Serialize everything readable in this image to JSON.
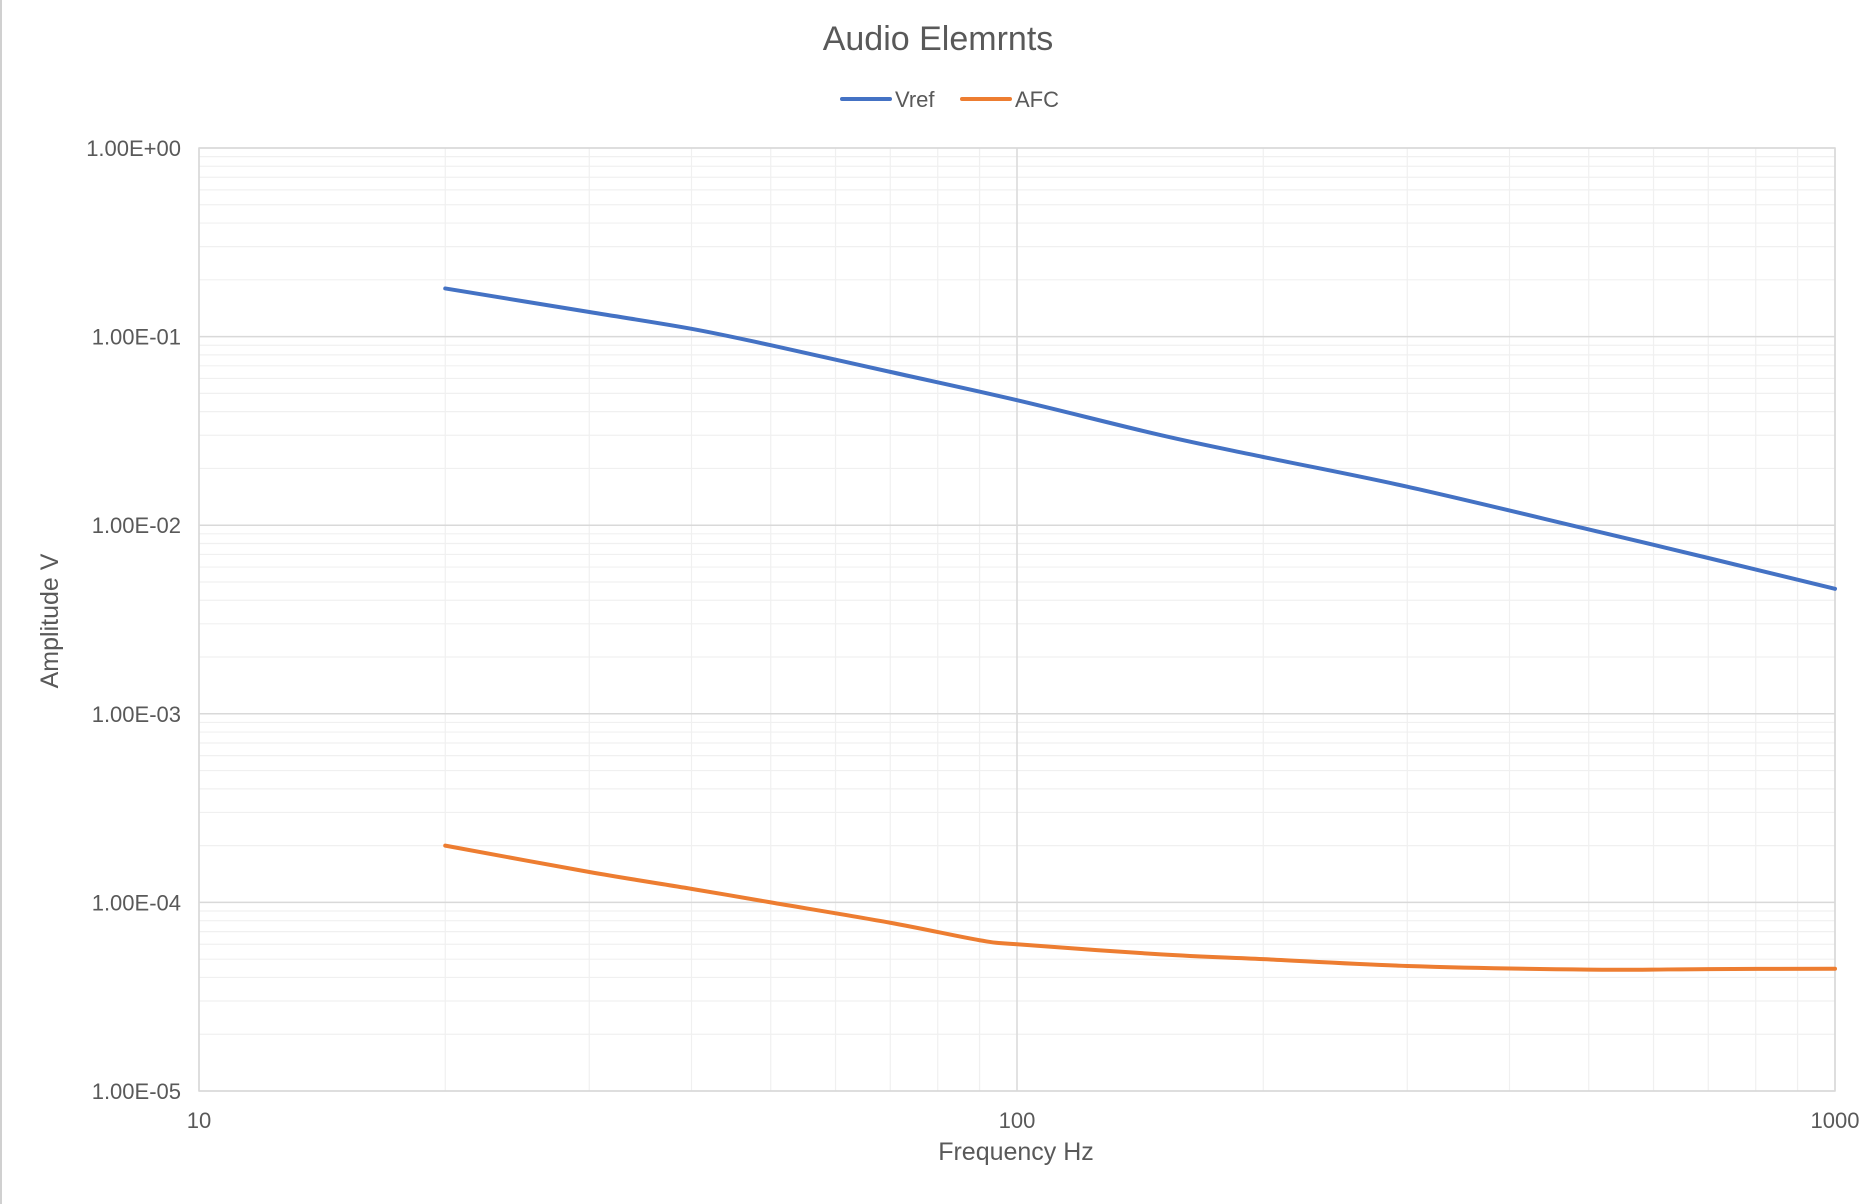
{
  "chart_data": {
    "type": "line",
    "title": "Audio Elemrnts",
    "xlabel": "Frequency Hz",
    "ylabel": "Amplitude V",
    "x_scale": "log",
    "y_scale": "log",
    "xlim": [
      10,
      1000
    ],
    "ylim": [
      1e-05,
      1
    ],
    "x_ticks": [
      {
        "value": 10,
        "label": "10"
      },
      {
        "value": 100,
        "label": "100"
      },
      {
        "value": 1000,
        "label": "1000"
      }
    ],
    "y_ticks": [
      {
        "value": 1,
        "label": "1.00E+00"
      },
      {
        "value": 0.1,
        "label": "1.00E-01"
      },
      {
        "value": 0.01,
        "label": "1.00E-02"
      },
      {
        "value": 0.001,
        "label": "1.00E-03"
      },
      {
        "value": 0.0001,
        "label": "1.00E-04"
      },
      {
        "value": 1e-05,
        "label": "1.00E-05"
      }
    ],
    "grid": true,
    "legend": "top-center",
    "series": [
      {
        "name": "Vref",
        "color": "#4472c4",
        "x": [
          20,
          30,
          40,
          50,
          70,
          100,
          150,
          200,
          300,
          500,
          700,
          1000
        ],
        "y": [
          0.18,
          0.135,
          0.11,
          0.09,
          0.065,
          0.046,
          0.03,
          0.023,
          0.016,
          0.0095,
          0.0067,
          0.0046
        ]
      },
      {
        "name": "AFC",
        "color": "#ed7d31",
        "x": [
          20,
          30,
          40,
          50,
          70,
          90,
          100,
          150,
          200,
          300,
          500,
          700,
          1000
        ],
        "y": [
          0.0002,
          0.000145,
          0.000118,
          0.0001,
          7.8e-05,
          6.3e-05,
          6e-05,
          5.3e-05,
          5e-05,
          4.6e-05,
          4.4e-05,
          4.43e-05,
          4.45e-05
        ]
      }
    ]
  }
}
